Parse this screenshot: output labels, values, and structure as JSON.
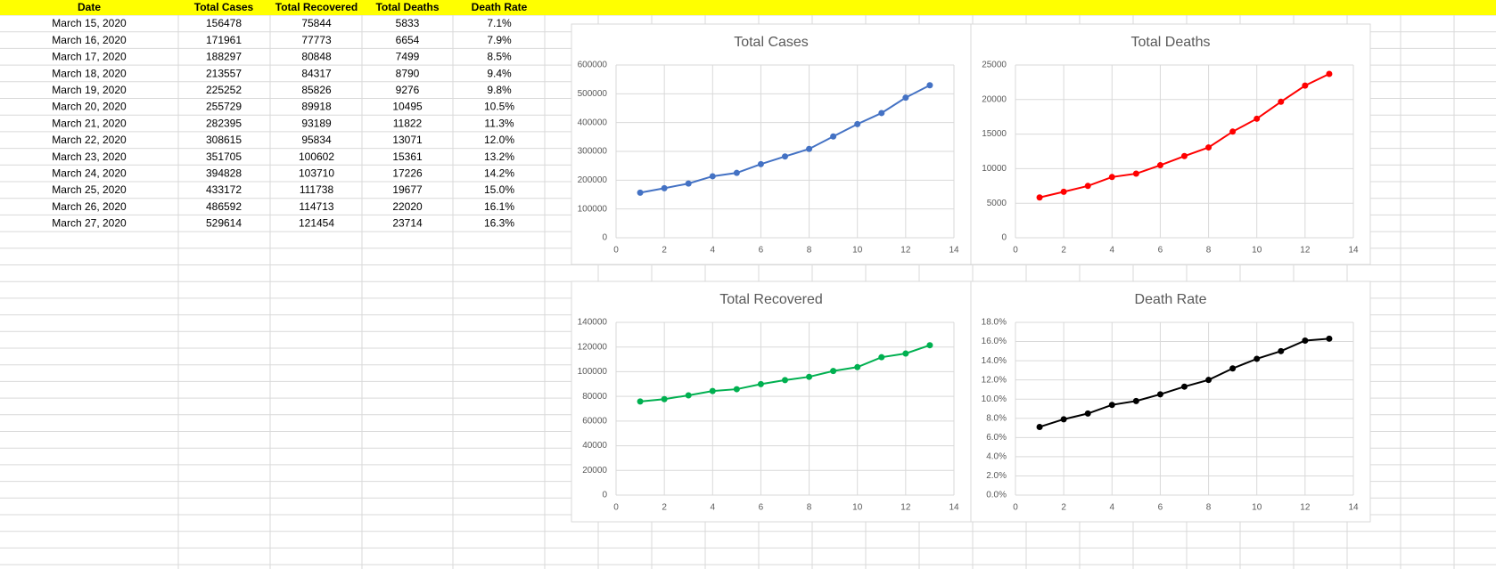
{
  "table": {
    "headers": [
      "Date",
      "Total Cases",
      "Total Recovered",
      "Total Deaths",
      "Death Rate"
    ],
    "rows": [
      [
        "March 15, 2020",
        "156478",
        "75844",
        "5833",
        "7.1%"
      ],
      [
        "March 16, 2020",
        "171961",
        "77773",
        "6654",
        "7.9%"
      ],
      [
        "March 17, 2020",
        "188297",
        "80848",
        "7499",
        "8.5%"
      ],
      [
        "March 18, 2020",
        "213557",
        "84317",
        "8790",
        "9.4%"
      ],
      [
        "March 19, 2020",
        "225252",
        "85826",
        "9276",
        "9.8%"
      ],
      [
        "March 20, 2020",
        "255729",
        "89918",
        "10495",
        "10.5%"
      ],
      [
        "March 21, 2020",
        "282395",
        "93189",
        "11822",
        "11.3%"
      ],
      [
        "March 22, 2020",
        "308615",
        "95834",
        "13071",
        "12.0%"
      ],
      [
        "March 23, 2020",
        "351705",
        "100602",
        "15361",
        "13.2%"
      ],
      [
        "March 24, 2020",
        "394828",
        "103710",
        "17226",
        "14.2%"
      ],
      [
        "March 25, 2020",
        "433172",
        "111738",
        "19677",
        "15.0%"
      ],
      [
        "March 26, 2020",
        "486592",
        "114713",
        "22020",
        "16.1%"
      ],
      [
        "March 27, 2020",
        "529614",
        "121454",
        "23714",
        "16.3%"
      ]
    ]
  },
  "chart_data": [
    {
      "type": "line",
      "title": "Total Cases",
      "color": "#4472c4",
      "x": [
        1,
        2,
        3,
        4,
        5,
        6,
        7,
        8,
        9,
        10,
        11,
        12,
        13
      ],
      "values": [
        156478,
        171961,
        188297,
        213557,
        225252,
        255729,
        282395,
        308615,
        351705,
        394828,
        433172,
        486592,
        529614
      ],
      "xlim": [
        0,
        14
      ],
      "xticks": [
        0,
        2,
        4,
        6,
        8,
        10,
        12,
        14
      ],
      "ylim": [
        0,
        600000
      ],
      "yticks": [
        0,
        100000,
        200000,
        300000,
        400000,
        500000,
        600000
      ],
      "grid": true
    },
    {
      "type": "line",
      "title": "Total Deaths",
      "color": "#ff0000",
      "x": [
        1,
        2,
        3,
        4,
        5,
        6,
        7,
        8,
        9,
        10,
        11,
        12,
        13
      ],
      "values": [
        5833,
        6654,
        7499,
        8790,
        9276,
        10495,
        11822,
        13071,
        15361,
        17226,
        19677,
        22020,
        23714
      ],
      "xlim": [
        0,
        14
      ],
      "xticks": [
        0,
        2,
        4,
        6,
        8,
        10,
        12,
        14
      ],
      "ylim": [
        0,
        25000
      ],
      "yticks": [
        0,
        5000,
        10000,
        15000,
        20000,
        25000
      ],
      "grid": true
    },
    {
      "type": "line",
      "title": "Total Recovered",
      "color": "#00b050",
      "x": [
        1,
        2,
        3,
        4,
        5,
        6,
        7,
        8,
        9,
        10,
        11,
        12,
        13
      ],
      "values": [
        75844,
        77773,
        80848,
        84317,
        85826,
        89918,
        93189,
        95834,
        100602,
        103710,
        111738,
        114713,
        121454
      ],
      "xlim": [
        0,
        14
      ],
      "xticks": [
        0,
        2,
        4,
        6,
        8,
        10,
        12,
        14
      ],
      "ylim": [
        0,
        140000
      ],
      "yticks": [
        0,
        20000,
        40000,
        60000,
        80000,
        100000,
        120000,
        140000
      ],
      "grid": true
    },
    {
      "type": "line",
      "title": "Death Rate",
      "color": "#000000",
      "x": [
        1,
        2,
        3,
        4,
        5,
        6,
        7,
        8,
        9,
        10,
        11,
        12,
        13
      ],
      "values": [
        7.1,
        7.9,
        8.5,
        9.4,
        9.8,
        10.5,
        11.3,
        12.0,
        13.2,
        14.2,
        15.0,
        16.1,
        16.3
      ],
      "xlim": [
        0,
        14
      ],
      "xticks": [
        0,
        2,
        4,
        6,
        8,
        10,
        12,
        14
      ],
      "ylim": [
        0,
        18
      ],
      "yticks": [
        {
          "value": 0,
          "label": "0.0%"
        },
        {
          "value": 2,
          "label": "2.0%"
        },
        {
          "value": 4,
          "label": "4.0%"
        },
        {
          "value": 6,
          "label": "6.0%"
        },
        {
          "value": 8,
          "label": "8.0%"
        },
        {
          "value": 10,
          "label": "10.0%"
        },
        {
          "value": 12,
          "label": "12.0%"
        },
        {
          "value": 14,
          "label": "14.0%"
        },
        {
          "value": 16,
          "label": "16.0%"
        },
        {
          "value": 18,
          "label": "18.0%"
        }
      ],
      "grid": true
    }
  ]
}
